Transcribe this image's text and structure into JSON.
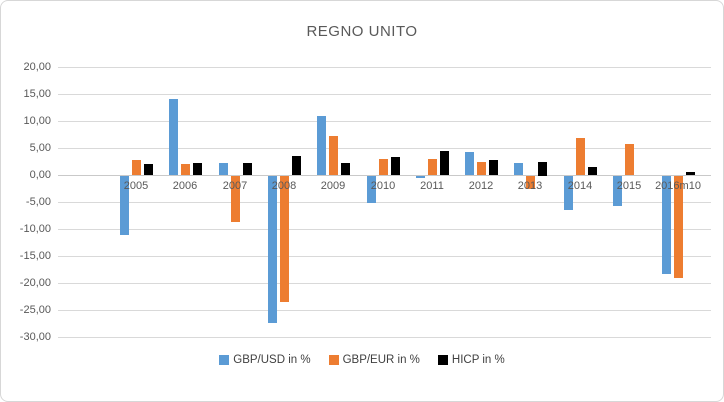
{
  "chart_data": {
    "type": "bar",
    "title": "REGNO UNITO",
    "categories": [
      "2005",
      "2006",
      "2007",
      "2008",
      "2009",
      "2010",
      "2011",
      "2012",
      "2013",
      "2014",
      "2015",
      "2016m10"
    ],
    "series": [
      {
        "name": "GBP/USD in %",
        "color": "#5B9BD5",
        "values": [
          -11.0,
          14.0,
          2.3,
          -27.2,
          10.9,
          -5.0,
          -0.4,
          4.3,
          2.2,
          -6.3,
          -5.5,
          -18.2
        ]
      },
      {
        "name": "GBP/EUR in %",
        "color": "#ED7D31",
        "values": [
          2.8,
          2.0,
          -8.5,
          -23.3,
          7.2,
          2.9,
          3.0,
          2.4,
          -2.4,
          6.9,
          5.8,
          -18.8
        ]
      },
      {
        "name": "HICP in %",
        "color": "#000000",
        "values": [
          2.1,
          2.3,
          2.3,
          3.6,
          2.2,
          3.3,
          4.5,
          2.8,
          2.5,
          1.5,
          0.0,
          0.5
        ]
      }
    ],
    "ylim": [
      -30,
      20
    ],
    "yticks": [
      {
        "label": "20,00",
        "value": 20
      },
      {
        "label": "15,00",
        "value": 15
      },
      {
        "label": "10,00",
        "value": 10
      },
      {
        "label": "5,00",
        "value": 5
      },
      {
        "label": "0,00",
        "value": 0
      },
      {
        "label": "-5,00",
        "value": -5
      },
      {
        "label": "-10,00",
        "value": -10
      },
      {
        "label": "-15,00",
        "value": -15
      },
      {
        "label": "-20,00",
        "value": -20
      },
      {
        "label": "-25,00",
        "value": -25
      },
      {
        "label": "-30,00",
        "value": -30
      }
    ],
    "grid": true,
    "legend_position": "bottom"
  }
}
